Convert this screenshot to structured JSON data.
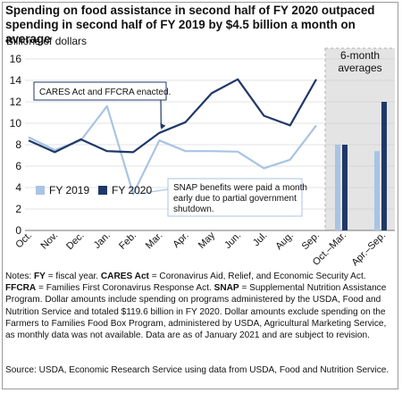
{
  "title": "Spending on food assistance in second half of FY 2020 outpaced spending in second half of FY 2019 by $4.5 billion a month on average",
  "notes": {
    "items": [
      {
        "term": "FY",
        "text": " = fiscal year. "
      },
      {
        "term": "CARES Act",
        "text": " = Coronavirus Aid, Relief, and Economic Security Act. "
      },
      {
        "term": "FFCRA",
        "text": " = Families First Coronavirus Response Act. "
      },
      {
        "term": "SNAP",
        "text": " = Supplemental Nutrition Assistance Program. Dollar amounts include spending on programs administered by the USDA, Food and Nutrition Service and totaled $119.6 billion in FY 2020. Dollar amounts exclude spending on the Farmers to Families Food Box Program, administered by USDA, Agricultural Marketing Service, as monthly data was not available. Data are as of January 2021 and are subject to revision."
      }
    ],
    "prefix": "Notes: "
  },
  "source": "Source: USDA, Economic Research Service using data from USDA, Food and Nutrition Service.",
  "chart_data": {
    "type": "line",
    "ylabel": "Billions of dollars",
    "ylim": [
      0,
      16
    ],
    "yticks": [
      0,
      2,
      4,
      6,
      8,
      10,
      12,
      14,
      16
    ],
    "grid": true,
    "categories": [
      "Oct.",
      "Nov.",
      "Dec.",
      "Jan.",
      "Feb.",
      "Mar.",
      "Apr.",
      "May",
      "Jun.",
      "Jul.",
      "Aug.",
      "Sep."
    ],
    "series": [
      {
        "name": "FY 2019",
        "color": "#a9c4e3",
        "values": [
          8.7,
          7.5,
          8.4,
          11.6,
          3.4,
          8.4,
          7.4,
          7.4,
          7.35,
          5.8,
          6.6,
          9.8
        ]
      },
      {
        "name": "FY 2020",
        "color": "#1f3868",
        "values": [
          8.4,
          7.3,
          8.5,
          7.4,
          7.3,
          9.1,
          10.1,
          12.8,
          14.1,
          10.7,
          9.8,
          14.1
        ]
      }
    ],
    "legend": "bottom-left",
    "annotations": [
      {
        "text": "CARES Act and FFCRA enacted.",
        "target": "Mar."
      },
      {
        "text": "SNAP benefits were paid a month early due to partial government shutdown.",
        "target": "Feb."
      }
    ],
    "averages_panel": {
      "title": "6-month averages",
      "categories": [
        "Oct.–Mar.",
        "Apr.–Sep."
      ],
      "series": [
        {
          "name": "FY 2019",
          "values": [
            8.0,
            7.4
          ]
        },
        {
          "name": "FY 2020",
          "values": [
            8.0,
            12.0
          ]
        }
      ]
    }
  }
}
